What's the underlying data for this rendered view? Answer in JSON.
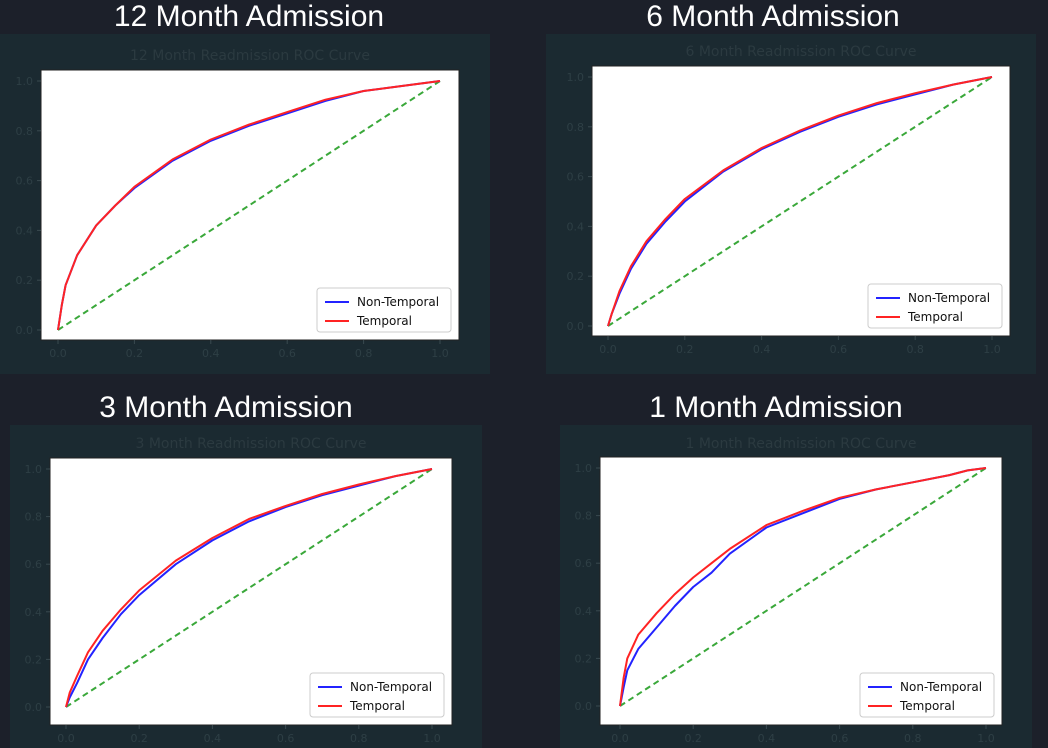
{
  "headings": [
    "12 Month Admission",
    "6 Month Admission",
    "3 Month Admission",
    "1 Month Admission"
  ],
  "colors": {
    "background": "#1c202a",
    "panel": "#1b2a31",
    "non_temporal": "#2323ff",
    "temporal": "#ff2323",
    "chance": "#3aa83a"
  },
  "chart_data": [
    {
      "type": "line",
      "title": "12 Month Readmission ROC Curve",
      "xlim": [
        0,
        1
      ],
      "ylim": [
        0,
        1
      ],
      "x_ticks": [
        "0.0",
        "0.2",
        "0.4",
        "0.6",
        "0.8",
        "1.0"
      ],
      "y_ticks": [
        "0.0",
        "0.2",
        "0.4",
        "0.6",
        "0.8",
        "1.0"
      ],
      "legend": [
        "Non-Temporal",
        "Temporal"
      ],
      "legend_position": "bottom-right",
      "series": [
        {
          "name": "Non-Temporal",
          "x": [
            0,
            0.01,
            0.02,
            0.05,
            0.1,
            0.15,
            0.2,
            0.3,
            0.4,
            0.5,
            0.6,
            0.7,
            0.8,
            0.9,
            1.0
          ],
          "y": [
            0,
            0.1,
            0.18,
            0.3,
            0.42,
            0.5,
            0.57,
            0.68,
            0.76,
            0.82,
            0.87,
            0.92,
            0.96,
            0.98,
            1.0
          ]
        },
        {
          "name": "Temporal",
          "x": [
            0,
            0.01,
            0.02,
            0.05,
            0.1,
            0.15,
            0.2,
            0.3,
            0.4,
            0.5,
            0.6,
            0.7,
            0.8,
            0.9,
            1.0
          ],
          "y": [
            0,
            0.1,
            0.18,
            0.3,
            0.42,
            0.5,
            0.575,
            0.685,
            0.765,
            0.825,
            0.875,
            0.925,
            0.96,
            0.98,
            1.0
          ]
        },
        {
          "name": "Chance",
          "x": [
            0,
            1
          ],
          "y": [
            0,
            1
          ]
        }
      ]
    },
    {
      "type": "line",
      "title": "6 Month Readmission ROC Curve",
      "xlim": [
        0,
        1
      ],
      "ylim": [
        0,
        1
      ],
      "x_ticks": [
        "0.0",
        "0.2",
        "0.4",
        "0.6",
        "0.8",
        "1.0"
      ],
      "y_ticks": [
        "0.0",
        "0.2",
        "0.4",
        "0.6",
        "0.8",
        "1.0"
      ],
      "legend": [
        "Non-Temporal",
        "Temporal"
      ],
      "legend_position": "bottom-right",
      "series": [
        {
          "name": "Non-Temporal",
          "x": [
            0,
            0.01,
            0.03,
            0.06,
            0.1,
            0.15,
            0.2,
            0.3,
            0.4,
            0.5,
            0.6,
            0.7,
            0.8,
            0.9,
            1.0
          ],
          "y": [
            0,
            0.05,
            0.13,
            0.23,
            0.33,
            0.42,
            0.5,
            0.62,
            0.71,
            0.78,
            0.84,
            0.89,
            0.93,
            0.97,
            1.0
          ]
        },
        {
          "name": "Temporal",
          "x": [
            0,
            0.01,
            0.03,
            0.06,
            0.1,
            0.15,
            0.2,
            0.3,
            0.4,
            0.5,
            0.6,
            0.7,
            0.8,
            0.9,
            1.0
          ],
          "y": [
            0,
            0.05,
            0.14,
            0.24,
            0.34,
            0.43,
            0.51,
            0.625,
            0.715,
            0.785,
            0.845,
            0.895,
            0.935,
            0.97,
            1.0
          ]
        },
        {
          "name": "Chance",
          "x": [
            0,
            1
          ],
          "y": [
            0,
            1
          ]
        }
      ]
    },
    {
      "type": "line",
      "title": "3 Month Readmission ROC Curve",
      "xlim": [
        0,
        1
      ],
      "ylim": [
        0,
        1
      ],
      "x_ticks": [
        "0.0",
        "0.2",
        "0.4",
        "0.6",
        "0.8",
        "1.0"
      ],
      "y_ticks": [
        "0.0",
        "0.2",
        "0.4",
        "0.6",
        "0.8",
        "1.0"
      ],
      "legend": [
        "Non-Temporal",
        "Temporal"
      ],
      "legend_position": "bottom-right",
      "series": [
        {
          "name": "Non-Temporal",
          "x": [
            0,
            0.01,
            0.03,
            0.06,
            0.1,
            0.15,
            0.2,
            0.3,
            0.4,
            0.5,
            0.6,
            0.7,
            0.8,
            0.9,
            1.0
          ],
          "y": [
            0,
            0.04,
            0.1,
            0.2,
            0.29,
            0.39,
            0.47,
            0.6,
            0.7,
            0.78,
            0.84,
            0.89,
            0.93,
            0.97,
            1.0
          ]
        },
        {
          "name": "Temporal",
          "x": [
            0,
            0.01,
            0.03,
            0.06,
            0.1,
            0.15,
            0.2,
            0.3,
            0.4,
            0.5,
            0.6,
            0.7,
            0.8,
            0.9,
            1.0
          ],
          "y": [
            0,
            0.06,
            0.13,
            0.23,
            0.32,
            0.41,
            0.49,
            0.615,
            0.71,
            0.79,
            0.845,
            0.895,
            0.935,
            0.97,
            1.0
          ]
        },
        {
          "name": "Chance",
          "x": [
            0,
            1
          ],
          "y": [
            0,
            1
          ]
        }
      ]
    },
    {
      "type": "line",
      "title": "1 Month Readmission ROC Curve",
      "xlim": [
        0,
        1
      ],
      "ylim": [
        0,
        1
      ],
      "x_ticks": [
        "0.0",
        "0.2",
        "0.4",
        "0.6",
        "0.8",
        "1.0"
      ],
      "y_ticks": [
        "0.0",
        "0.2",
        "0.4",
        "0.6",
        "0.8",
        "1.0"
      ],
      "legend": [
        "Non-Temporal",
        "Temporal"
      ],
      "legend_position": "bottom-right",
      "series": [
        {
          "name": "Non-Temporal",
          "x": [
            0,
            0.01,
            0.02,
            0.05,
            0.1,
            0.15,
            0.2,
            0.25,
            0.3,
            0.4,
            0.5,
            0.6,
            0.7,
            0.8,
            0.9,
            0.95,
            1.0
          ],
          "y": [
            0,
            0.08,
            0.15,
            0.24,
            0.33,
            0.42,
            0.5,
            0.56,
            0.64,
            0.75,
            0.81,
            0.87,
            0.91,
            0.94,
            0.97,
            0.99,
            1.0
          ]
        },
        {
          "name": "Temporal",
          "x": [
            0,
            0.01,
            0.02,
            0.05,
            0.1,
            0.15,
            0.2,
            0.25,
            0.3,
            0.4,
            0.5,
            0.6,
            0.7,
            0.8,
            0.9,
            0.95,
            1.0
          ],
          "y": [
            0,
            0.12,
            0.2,
            0.3,
            0.39,
            0.47,
            0.54,
            0.6,
            0.66,
            0.76,
            0.82,
            0.875,
            0.91,
            0.94,
            0.97,
            0.99,
            1.0
          ]
        },
        {
          "name": "Chance",
          "x": [
            0,
            1
          ],
          "y": [
            0,
            1
          ]
        }
      ]
    }
  ]
}
